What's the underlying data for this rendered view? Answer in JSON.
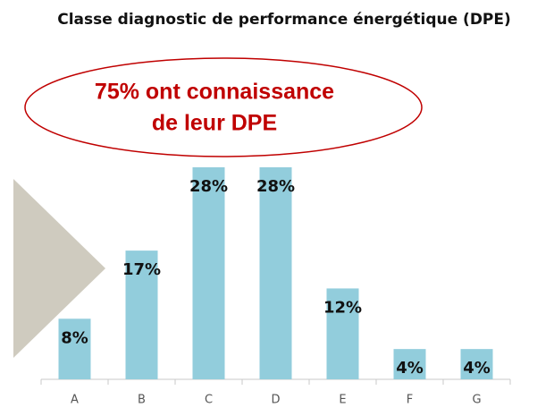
{
  "chart_data": {
    "type": "bar",
    "title": "Classe diagnostic de performance énergétique (DPE)",
    "annotation": [
      "75% ont connaissance",
      "de leur DPE"
    ],
    "categories": [
      "A",
      "B",
      "C",
      "D",
      "E",
      "F",
      "G"
    ],
    "values": [
      8,
      17,
      28,
      28,
      12,
      4,
      4
    ],
    "value_labels": [
      "8%",
      "17%",
      "28%",
      "28%",
      "12%",
      "4%",
      "4%"
    ],
    "color": "#92cddc",
    "ylim": [
      0,
      28
    ]
  }
}
